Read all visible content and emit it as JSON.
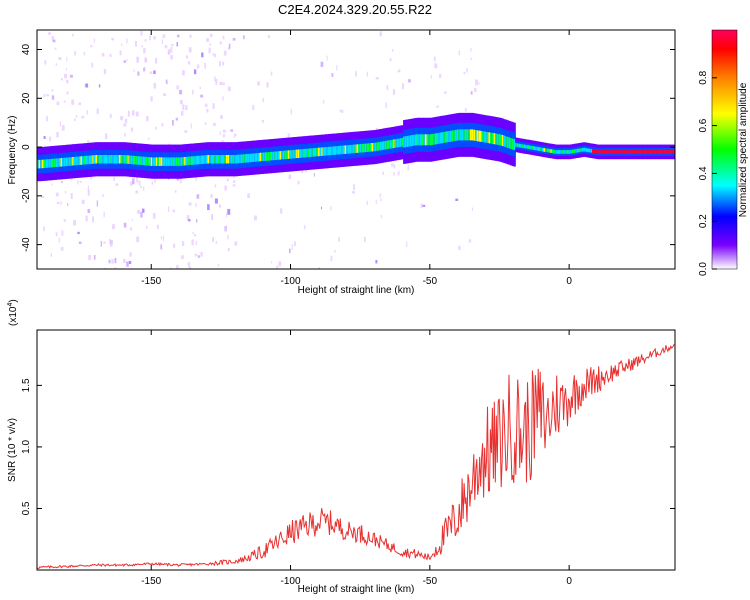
{
  "title": "C2E4.2024.329.20.55.R22",
  "chart_data": [
    {
      "type": "heatmap",
      "xlabel": "Height of straight line (km)",
      "ylabel": "Frequency (Hz)",
      "xlim": [
        -191,
        38
      ],
      "ylim": [
        -50,
        48
      ],
      "xticks": [
        -150,
        -100,
        -50,
        0
      ],
      "yticks": [
        -40,
        -20,
        0,
        20,
        40
      ],
      "grid": false,
      "ridge": {
        "x": [
          -190,
          -180,
          -170,
          -160,
          -150,
          -140,
          -130,
          -120,
          -110,
          -100,
          -90,
          -80,
          -70,
          -60,
          -55,
          -50,
          -45,
          -40,
          -35,
          -30,
          -25,
          -20,
          -15,
          -10,
          -5,
          0,
          5,
          10,
          20,
          30,
          37
        ],
        "freq": [
          -7,
          -6,
          -5,
          -5,
          -6,
          -6,
          -5,
          -5,
          -4,
          -3,
          -2,
          -1,
          0,
          2,
          3,
          3,
          4,
          5,
          5,
          4,
          3,
          1,
          0,
          -1,
          -2,
          -2,
          -1,
          -2,
          -2,
          -2,
          -2
        ]
      },
      "colorbar": {
        "label": "Normalized spectral amplitude",
        "range": [
          0,
          1
        ],
        "ticks": [
          "0.0",
          "0.2",
          "0.4",
          "0.6",
          "0.8"
        ],
        "stops": [
          "#ffffff",
          "#7a00ff",
          "#0000ff",
          "#00ffff",
          "#00ff00",
          "#ffff00",
          "#ff8000",
          "#ff0000",
          "#ff0060"
        ]
      }
    },
    {
      "type": "line",
      "xlabel": "Height of straight line (km)",
      "ylabel": "SNR (10 * v/v)",
      "y_multiplier": "(x10",
      "y_multiplier_exp": "4",
      "y_multiplier_close": ")",
      "xlim": [
        -191,
        38
      ],
      "ylim": [
        0,
        1.95
      ],
      "xticks": [
        -150,
        -100,
        -50,
        0
      ],
      "yticks": [
        0.5,
        1.0,
        1.5
      ],
      "ytick_labels": [
        "0.5",
        "1.0",
        "1.5"
      ],
      "color": "#e83030",
      "series": [
        {
          "x": [
            -191,
            -180,
            -170,
            -160,
            -150,
            -140,
            -130,
            -125,
            -120,
            -115,
            -110,
            -105,
            -100,
            -95,
            -90,
            -85,
            -80,
            -75,
            -70,
            -65,
            -60,
            -55,
            -50,
            -47,
            -44,
            -41,
            -38,
            -35,
            -32,
            -29,
            -26,
            -23,
            -20,
            -17,
            -14,
            -11,
            -8,
            -5,
            -2,
            0,
            5,
            10,
            15,
            20,
            25,
            30,
            35,
            38
          ],
          "y": [
            0.02,
            0.03,
            0.04,
            0.04,
            0.05,
            0.04,
            0.05,
            0.06,
            0.07,
            0.1,
            0.15,
            0.22,
            0.3,
            0.35,
            0.4,
            0.38,
            0.32,
            0.3,
            0.25,
            0.2,
            0.15,
            0.13,
            0.1,
            0.2,
            0.3,
            0.4,
            0.55,
            0.7,
            0.9,
            0.95,
            1.0,
            1.1,
            1.2,
            1.1,
            1.15,
            1.3,
            1.2,
            1.35,
            1.35,
            1.4,
            1.5,
            1.55,
            1.6,
            1.65,
            1.7,
            1.75,
            1.8,
            1.83
          ],
          "jitter": [
            0.01,
            0.01,
            0.01,
            0.01,
            0.01,
            0.01,
            0.01,
            0.02,
            0.02,
            0.03,
            0.06,
            0.08,
            0.1,
            0.1,
            0.12,
            0.1,
            0.08,
            0.08,
            0.06,
            0.05,
            0.04,
            0.04,
            0.03,
            0.1,
            0.15,
            0.2,
            0.25,
            0.3,
            0.35,
            0.4,
            0.4,
            0.45,
            0.5,
            0.45,
            0.45,
            0.4,
            0.35,
            0.3,
            0.25,
            0.22,
            0.15,
            0.12,
            0.08,
            0.06,
            0.05,
            0.04,
            0.03,
            0.03
          ]
        }
      ]
    }
  ]
}
